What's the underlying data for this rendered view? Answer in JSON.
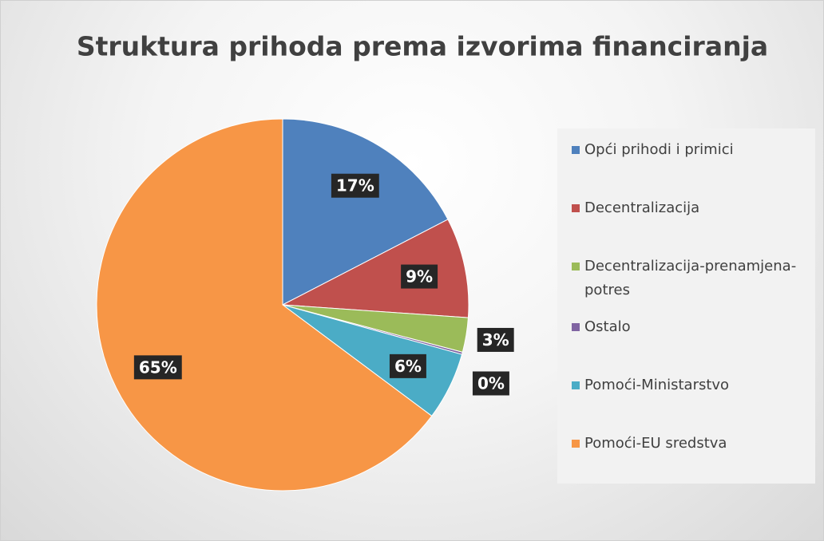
{
  "chart_data": {
    "type": "pie",
    "title": "Struktura prihoda prema izvorima financiranja",
    "categories": [
      "Opći prihodi i primici",
      "Decentralizacija",
      "Decentralizacija-prenamjena-potres",
      "Ostalo",
      "Pomoći-Ministarstvo",
      "Pomoći-EU sredstva"
    ],
    "values": [
      17.4,
      8.7,
      3,
      0.2,
      5.9,
      64.8
    ],
    "value_labels": [
      "17%",
      "9%",
      "3%",
      "0%",
      "6%",
      "65%"
    ],
    "colors": [
      "#4f81bd",
      "#c0504d",
      "#9bbb59",
      "#8064a2",
      "#4bacc6",
      "#f79646"
    ],
    "legend": "right"
  }
}
